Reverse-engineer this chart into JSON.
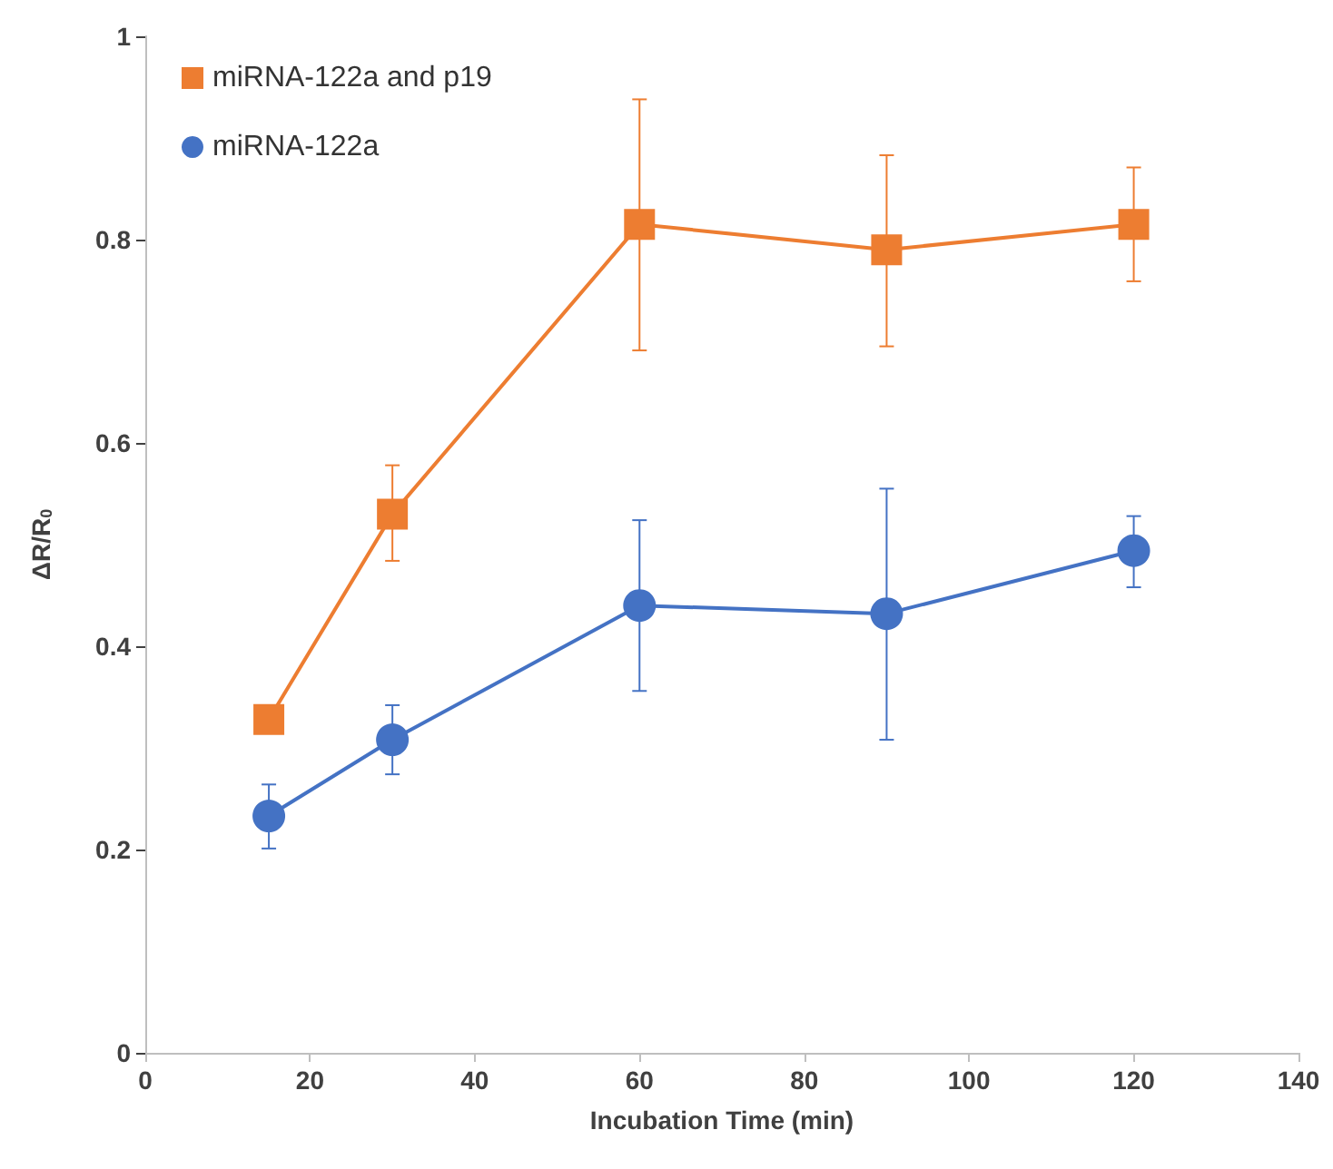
{
  "chart_data": {
    "type": "line",
    "xlabel": "Incubation Time (min)",
    "ylabel": "ΔR/R$_{0}$",
    "x": [
      15,
      30,
      60,
      90,
      120
    ],
    "series": [
      {
        "name": "miRNA-122a and p19",
        "color": "#ed7d31",
        "marker": "square",
        "values": [
          0.328,
          0.53,
          0.815,
          0.79,
          0.815
        ],
        "errors": [
          null,
          [
            0.484,
            0.578
          ],
          [
            0.691,
            0.938
          ],
          [
            0.695,
            0.883
          ],
          [
            0.759,
            0.871
          ]
        ]
      },
      {
        "name": "miRNA-122a",
        "color": "#4472c4",
        "marker": "circle",
        "values": [
          0.233,
          0.308,
          0.44,
          0.432,
          0.494
        ],
        "errors": [
          [
            0.201,
            0.264
          ],
          [
            0.274,
            0.342
          ],
          [
            0.356,
            0.524
          ],
          [
            0.308,
            0.555
          ],
          [
            0.458,
            0.528
          ]
        ]
      }
    ],
    "xlim": [
      0,
      140
    ],
    "xticks": [
      0,
      20,
      40,
      60,
      80,
      100,
      120,
      140
    ],
    "ylim": [
      0,
      1
    ],
    "yticks": [
      0,
      0.2,
      0.4,
      0.6,
      0.8,
      1
    ],
    "grid": false,
    "legend": "top left",
    "line_style": "solid"
  }
}
